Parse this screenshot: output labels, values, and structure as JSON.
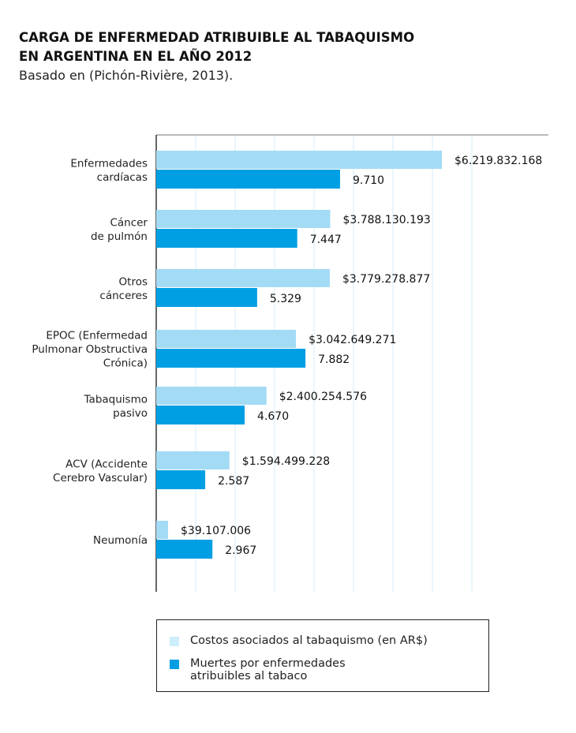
{
  "chart_data": {
    "type": "bar",
    "orientation": "horizontal",
    "title": "CARGA DE ENFERMEDAD ATRIBUIBLE AL TABAQUISMO\nEN ARGENTINA EN EL AÑO 2012",
    "subtitle": "Basado en (Pichón-Rivière, 2013).",
    "categories": [
      "Enfermedades\ncardíacas",
      "Cáncer\nde pulmón",
      "Otros\ncánceres",
      "EPOC (Enfermedad\nPulmonar Obstructiva\nCrónica)",
      "Tabaquismo\npasivo",
      "ACV (Accidente\nCerebro Vascular)",
      "Neumonía"
    ],
    "series": [
      {
        "name": "Costos asociados al tabaquismo (en AR$)",
        "color": "#a3dbf5",
        "values": [
          6219832168,
          3788130193,
          3779278877,
          3042649271,
          2400254576,
          1594499228,
          39107006
        ],
        "labels": [
          "$6.219.832.168",
          "$3.788.130.193",
          "$3.779.278.877",
          "$3.042.649.271",
          "$2.400.254.576",
          "$1.594.499.228",
          "$39.107.006"
        ]
      },
      {
        "name": "Muertes por enfermedades\natribuibles al tabaco",
        "color": "#009fe3",
        "values": [
          9710,
          7447,
          5329,
          7882,
          4670,
          2587,
          2967
        ],
        "labels": [
          "9.710",
          "7.447",
          "5.329",
          "7.882",
          "4.670",
          "2.587",
          "2.967"
        ]
      }
    ],
    "grid": true,
    "legend": "bottom"
  }
}
